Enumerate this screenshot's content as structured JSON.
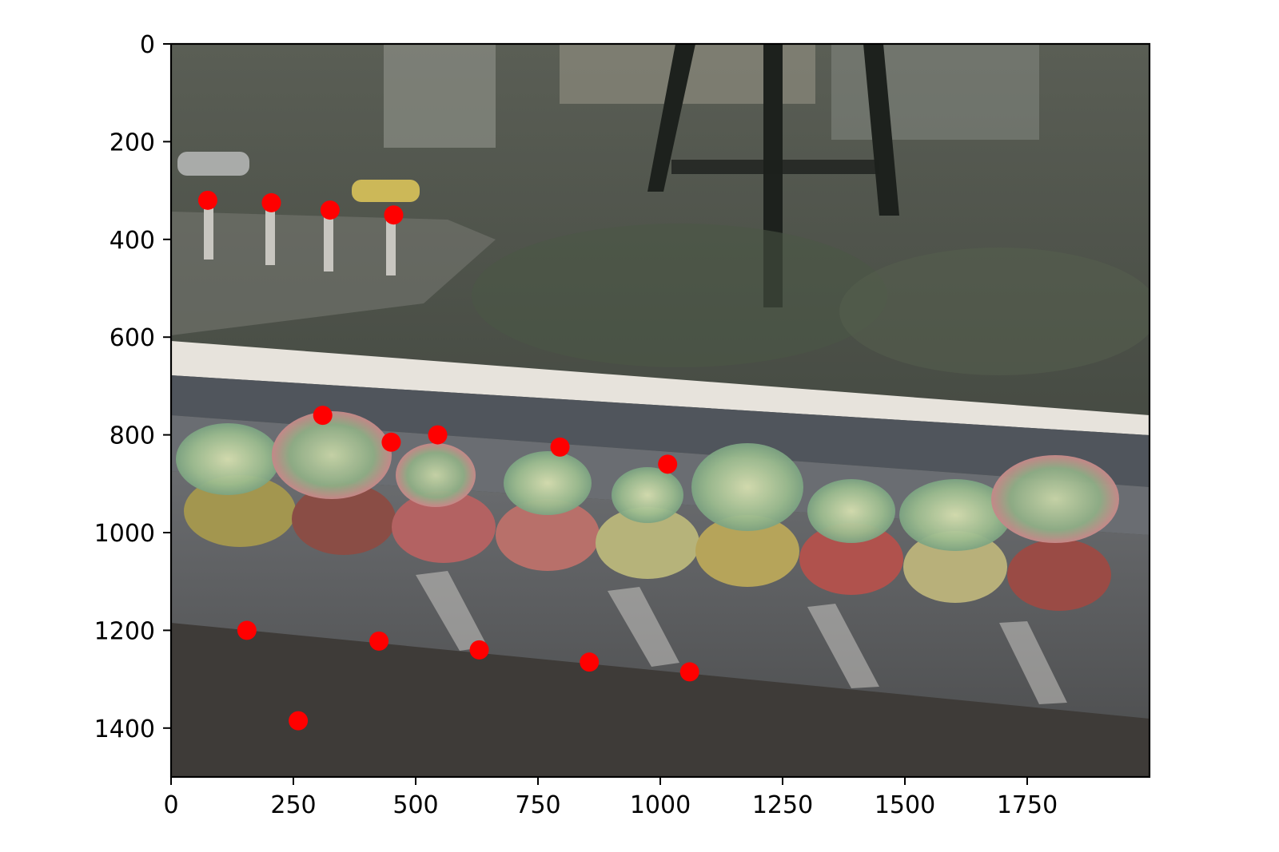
{
  "chart_data": {
    "type": "scatter",
    "title": "",
    "xlabel": "",
    "ylabel": "",
    "xlim": [
      0,
      2000
    ],
    "ylim": [
      1500,
      0
    ],
    "y_axis_inverted": true,
    "grid": false,
    "background": "photo of potted succulents on a windowsill behind glass",
    "xticks": [
      0,
      250,
      500,
      750,
      1000,
      1250,
      1500,
      1750
    ],
    "yticks": [
      0,
      200,
      400,
      600,
      800,
      1000,
      1200,
      1400
    ],
    "xtick_labels": [
      "0",
      "250",
      "500",
      "750",
      "1000",
      "1250",
      "1500",
      "1750"
    ],
    "ytick_labels": [
      "0",
      "200",
      "400",
      "600",
      "800",
      "1000",
      "1200",
      "1400"
    ],
    "marker_color": "#ff0000",
    "series": [
      {
        "name": "points",
        "x": [
          75,
          205,
          325,
          455,
          310,
          450,
          545,
          795,
          1015,
          155,
          425,
          630,
          855,
          1060,
          260
        ],
        "y": [
          320,
          325,
          340,
          350,
          760,
          815,
          800,
          825,
          860,
          1200,
          1222,
          1240,
          1265,
          1285,
          1385
        ]
      }
    ]
  }
}
